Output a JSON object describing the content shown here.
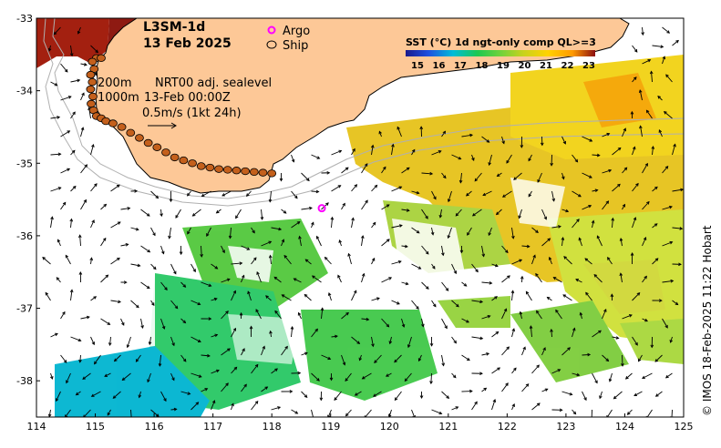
{
  "title": {
    "product": "L3SM-1d",
    "date": "13 Feb 2025"
  },
  "legend": {
    "argo_label": "Argo",
    "ship_label": "Ship",
    "contour_200": "200m",
    "contour_1000": "1000m",
    "current_label": "NRT00 adj. sealevel",
    "current_time": "13-Feb 00:00Z",
    "arrow_scale": "0.5m/s (1kt 24h)",
    "colorbar_title": "SST (°C) 1d ngt-only comp QL>=3",
    "colorbar_ticks": [
      "15",
      "16",
      "17",
      "18",
      "19",
      "20",
      "21",
      "22",
      "23"
    ]
  },
  "credit": "© IMOS 18-Feb-2025 11:22 Hobart",
  "axes": {
    "x_ticks": [
      "114",
      "115",
      "116",
      "117",
      "118",
      "119",
      "120",
      "121",
      "122",
      "123",
      "124",
      "125"
    ],
    "y_ticks": [
      "-33",
      "-34",
      "-35",
      "-36",
      "-37",
      "-38"
    ],
    "xlim": [
      114,
      125
    ],
    "ylim": [
      -38.5,
      -33
    ]
  },
  "colors": {
    "land": "#fdc897",
    "argo": "#ff00ff",
    "ship": "#c4601c",
    "contour": "#b0b0b0"
  },
  "argo_float": {
    "lon": 118.85,
    "lat": -35.62
  },
  "ship_track": [
    [
      115.02,
      -33.55
    ],
    [
      115.1,
      -33.55
    ],
    [
      114.95,
      -33.6
    ],
    [
      114.98,
      -33.7
    ],
    [
      114.92,
      -33.78
    ],
    [
      114.95,
      -33.88
    ],
    [
      114.92,
      -33.98
    ],
    [
      114.96,
      -34.08
    ],
    [
      114.93,
      -34.18
    ],
    [
      114.97,
      -34.27
    ],
    [
      115.02,
      -34.35
    ],
    [
      115.1,
      -34.38
    ],
    [
      115.18,
      -34.42
    ],
    [
      115.3,
      -34.45
    ],
    [
      115.45,
      -34.5
    ],
    [
      115.6,
      -34.58
    ],
    [
      115.75,
      -34.65
    ],
    [
      115.9,
      -34.72
    ],
    [
      116.05,
      -34.78
    ],
    [
      116.2,
      -34.85
    ],
    [
      116.35,
      -34.92
    ],
    [
      116.5,
      -34.96
    ],
    [
      116.65,
      -35.0
    ],
    [
      116.8,
      -35.04
    ],
    [
      116.95,
      -35.06
    ],
    [
      117.1,
      -35.08
    ],
    [
      117.25,
      -35.09
    ],
    [
      117.4,
      -35.1
    ],
    [
      117.55,
      -35.11
    ],
    [
      117.7,
      -35.12
    ],
    [
      117.85,
      -35.13
    ],
    [
      118.0,
      -35.14
    ]
  ]
}
